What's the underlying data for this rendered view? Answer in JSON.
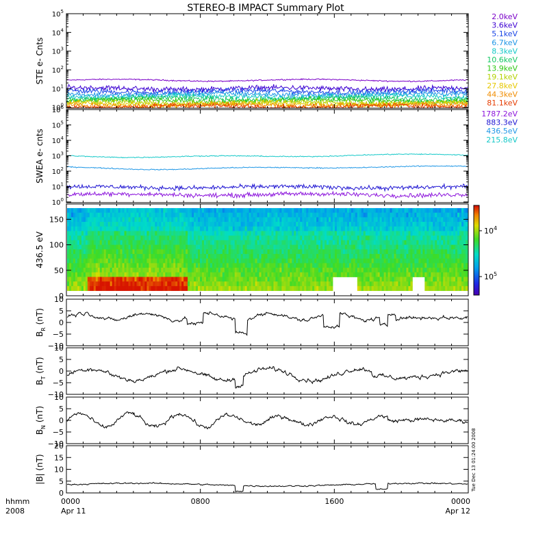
{
  "title": "STEREO-B IMPACT Summary Plot",
  "timestamp_note": "Tue Dec 13 01:24:00 2008",
  "x_axis": {
    "row1": {
      "left": "hhmm",
      "ticks": [
        "0000",
        "0800",
        "1600",
        "0000"
      ]
    },
    "row2": {
      "left": "2008",
      "ticks": [
        "Apr 11",
        "",
        "",
        "Apr 12"
      ]
    }
  },
  "chart_data": [
    {
      "type": "line",
      "id": "ste",
      "ylabel": "STE e- Cnts",
      "yscale": "log",
      "ylim": [
        0.9,
        100000
      ],
      "yticks": [
        {
          "b": "10",
          "e": "0"
        },
        {
          "b": "10",
          "e": "1"
        },
        {
          "b": "10",
          "e": "2"
        },
        {
          "b": "10",
          "e": "3"
        },
        {
          "b": "10",
          "e": "4"
        },
        {
          "b": "10",
          "e": "5"
        }
      ],
      "legend_position": "right",
      "series": [
        {
          "name": "2.0keV",
          "color": "#7a00c8",
          "level": 28
        },
        {
          "name": "3.6keV",
          "color": "#3c00d2",
          "level": 10
        },
        {
          "name": "5.1keV",
          "color": "#1a46e6",
          "level": 7
        },
        {
          "name": "6.7keV",
          "color": "#1e96e6",
          "level": 5
        },
        {
          "name": "8.3keV",
          "color": "#14c8c8",
          "level": 3.8
        },
        {
          "name": "10.6keV",
          "color": "#14c864",
          "level": 2.9
        },
        {
          "name": "13.9keV",
          "color": "#2dc814",
          "level": 2.3
        },
        {
          "name": "19.1keV",
          "color": "#b4d200",
          "level": 1.8
        },
        {
          "name": "27.8keV",
          "color": "#e6c800",
          "level": 1.5
        },
        {
          "name": "44.3keV",
          "color": "#f08c00",
          "level": 1.3
        },
        {
          "name": "81.1keV",
          "color": "#e63c00",
          "level": 1.1
        }
      ]
    },
    {
      "type": "line",
      "id": "swea",
      "ylabel": "SWEA e- cnts",
      "yscale": "log",
      "ylim": [
        0.9,
        1000000
      ],
      "yticks": [
        {
          "b": "10",
          "e": "0"
        },
        {
          "b": "10",
          "e": "1"
        },
        {
          "b": "10",
          "e": "2"
        },
        {
          "b": "10",
          "e": "3"
        },
        {
          "b": "10",
          "e": "4"
        },
        {
          "b": "10",
          "e": "5"
        },
        {
          "b": "10",
          "e": "6"
        }
      ],
      "legend_position": "right",
      "series": [
        {
          "name": "1787.2eV",
          "color": "#8c14dc",
          "level": 3
        },
        {
          "name": "883.3eV",
          "color": "#1e14d2",
          "level": 9
        },
        {
          "name": "436.5eV",
          "color": "#1e96e6",
          "level": 170
        },
        {
          "name": "215.8eV",
          "color": "#14c8c8",
          "level": 1000
        }
      ]
    },
    {
      "type": "heatmap",
      "id": "pad",
      "ylabel": "436.5 eV",
      "ylim": [
        0,
        180
      ],
      "yticks": [
        "0",
        "50",
        "100",
        "150"
      ],
      "colorbar": {
        "scale": "log",
        "ticks": [
          {
            "b": "10",
            "e": "4"
          },
          {
            "b": "10",
            "e": "5"
          }
        ]
      }
    },
    {
      "type": "line",
      "id": "br",
      "ylabel": {
        "base": "B",
        "sub": "R",
        "unit": " (nT)"
      },
      "ylim": [
        -10,
        10
      ],
      "yticks": [
        "−10",
        "−5",
        "0",
        "5",
        "10"
      ],
      "color": "#000000"
    },
    {
      "type": "line",
      "id": "bt",
      "ylabel": {
        "base": "B",
        "sub": "T",
        "unit": " (nT)"
      },
      "ylim": [
        -10,
        10
      ],
      "yticks": [
        "−10",
        "−5",
        "0",
        "5",
        "10"
      ],
      "color": "#000000"
    },
    {
      "type": "line",
      "id": "bn",
      "ylabel": {
        "base": "B",
        "sub": "N",
        "unit": " (nT)"
      },
      "ylim": [
        -10,
        10
      ],
      "yticks": [
        "−10",
        "−5",
        "0",
        "5",
        "10"
      ],
      "color": "#000000"
    },
    {
      "type": "line",
      "id": "bmag",
      "ylabel": "|B| (nT)",
      "ylim": [
        0,
        20
      ],
      "yticks": [
        "0",
        "5",
        "10",
        "15",
        "20"
      ],
      "color": "#000000"
    }
  ]
}
